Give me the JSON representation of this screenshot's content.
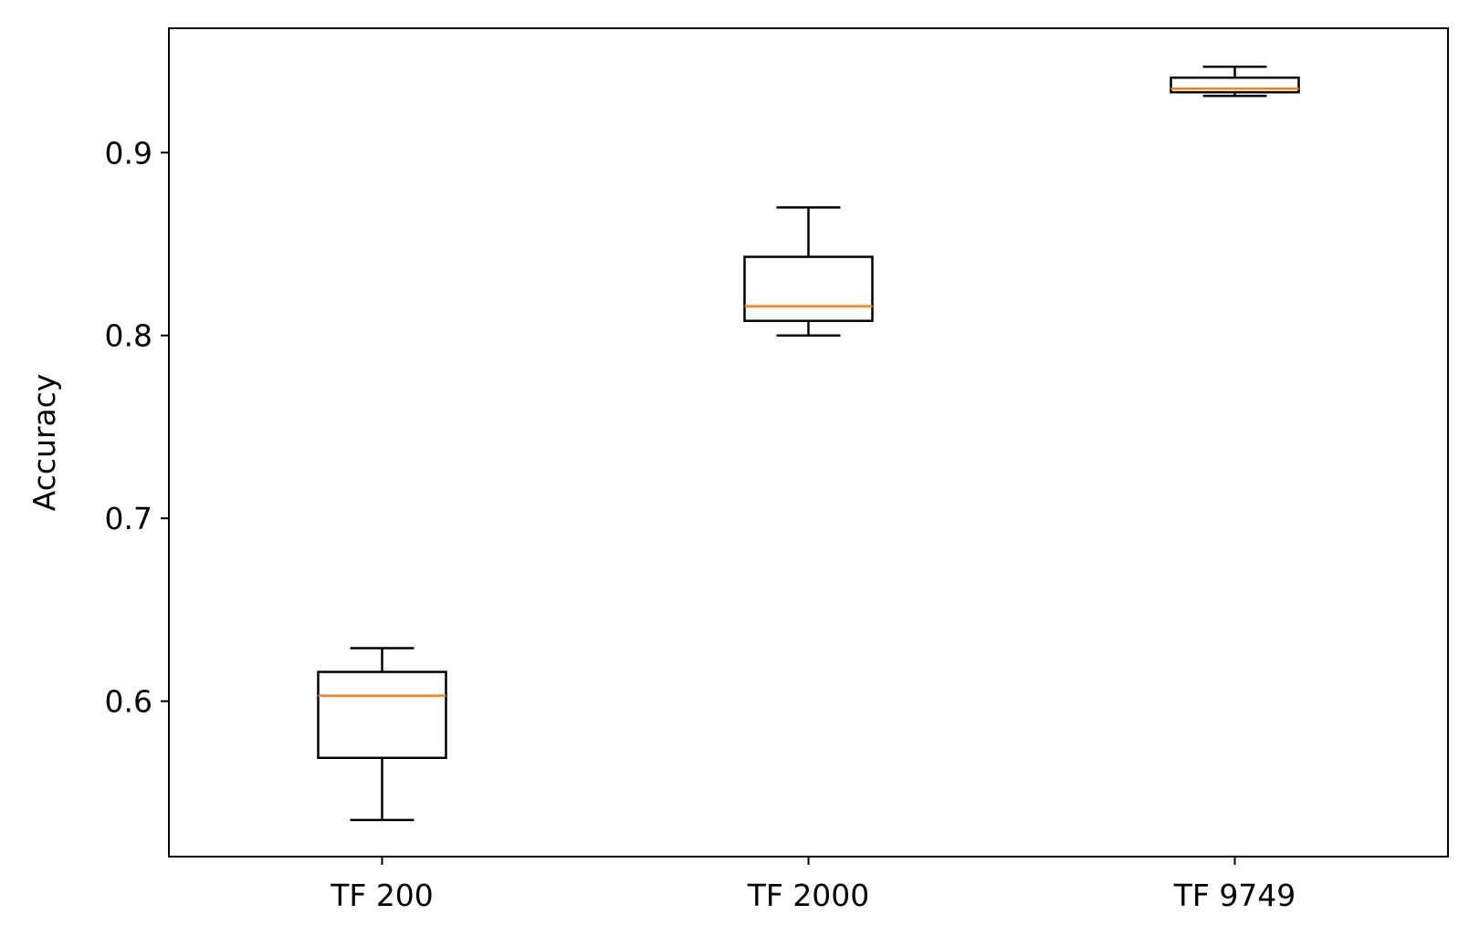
{
  "chart_data": {
    "type": "box",
    "title": "",
    "xlabel": "",
    "ylabel": "Accuracy",
    "ylim": [
      0.515,
      0.968
    ],
    "yticks": [
      0.6,
      0.7,
      0.8,
      0.9
    ],
    "ytick_labels": [
      "0.6",
      "0.7",
      "0.8",
      "0.9"
    ],
    "categories": [
      "TF 200",
      "TF 2000",
      "TF 9749"
    ],
    "boxes": [
      {
        "whisker_low": 0.535,
        "q1": 0.569,
        "median": 0.603,
        "q3": 0.616,
        "whisker_high": 0.629
      },
      {
        "whisker_low": 0.8,
        "q1": 0.808,
        "median": 0.816,
        "q3": 0.843,
        "whisker_high": 0.87
      },
      {
        "whisker_low": 0.931,
        "q1": 0.933,
        "median": 0.935,
        "q3": 0.941,
        "whisker_high": 0.947
      }
    ],
    "colors": {
      "box": "#000000",
      "median": "#ff7f0e",
      "frame": "#000000"
    },
    "grid": false
  }
}
